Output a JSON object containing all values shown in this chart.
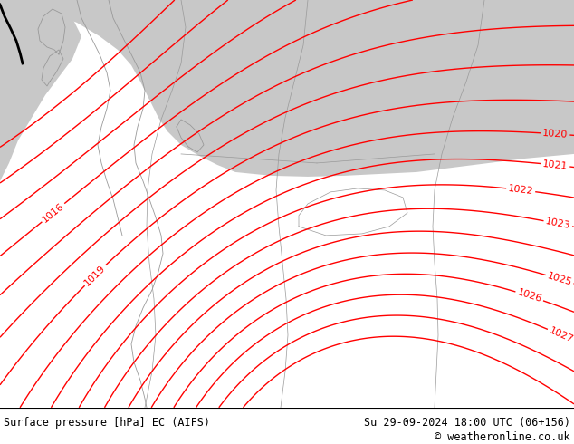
{
  "title_left": "Surface pressure [hPa] EC (AIFS)",
  "title_right": "Su 29-09-2024 18:00 UTC (06+156)",
  "copyright": "© weatheronline.co.uk",
  "land_color": "#aae672",
  "sea_color": "#c8c8c8",
  "contour_color": "red",
  "border_color": "#999999",
  "text_color": "black",
  "figsize": [
    6.34,
    4.9
  ],
  "dpi": 100,
  "pressure_min": 1013,
  "pressure_max": 1029,
  "label_levels": [
    1016,
    1019,
    1020,
    1021,
    1022,
    1023,
    1025,
    1026,
    1027
  ]
}
